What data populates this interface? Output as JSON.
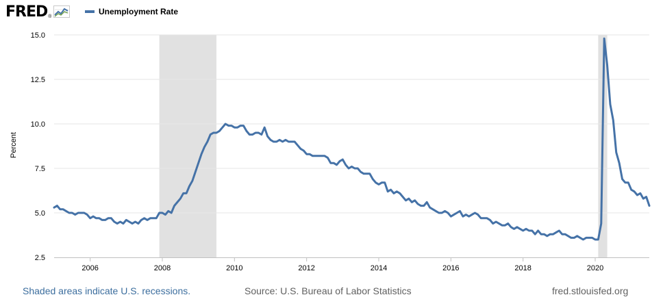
{
  "header": {
    "logo_text": "FRED",
    "logo_mark": "®",
    "logo_icon": "fred-chart-icon"
  },
  "colors": {
    "series": "#4572a7",
    "recession": "#e1e1e1",
    "grid": "#e6e6e6",
    "footer_link": "#3c6e9e",
    "footer_text": "#606060"
  },
  "chart_data": {
    "type": "line",
    "title": "",
    "xlabel": "",
    "ylabel": "Percent",
    "xlim": [
      2005.0,
      2021.5
    ],
    "ylim": [
      2.5,
      15.0
    ],
    "x_ticks": [
      2006,
      2008,
      2010,
      2012,
      2014,
      2016,
      2018,
      2020
    ],
    "x_tick_labels": [
      "2006",
      "2008",
      "2010",
      "2012",
      "2014",
      "2016",
      "2018",
      "2020"
    ],
    "y_ticks": [
      2.5,
      5.0,
      7.5,
      10.0,
      12.5,
      15.0
    ],
    "y_tick_labels": [
      "2.5",
      "5.0",
      "7.5",
      "10.0",
      "12.5",
      "15.0"
    ],
    "grid": "horizontal",
    "legend": "top-left",
    "series": [
      {
        "name": "Unemployment Rate",
        "x_start": "2005-01",
        "frequency": "monthly",
        "values": [
          5.3,
          5.4,
          5.2,
          5.2,
          5.1,
          5.0,
          5.0,
          4.9,
          5.0,
          5.0,
          5.0,
          4.9,
          4.7,
          4.8,
          4.7,
          4.7,
          4.6,
          4.6,
          4.7,
          4.7,
          4.5,
          4.4,
          4.5,
          4.4,
          4.6,
          4.5,
          4.4,
          4.5,
          4.4,
          4.6,
          4.7,
          4.6,
          4.7,
          4.7,
          4.7,
          5.0,
          5.0,
          4.9,
          5.1,
          5.0,
          5.4,
          5.6,
          5.8,
          6.1,
          6.1,
          6.5,
          6.8,
          7.3,
          7.8,
          8.3,
          8.7,
          9.0,
          9.4,
          9.5,
          9.5,
          9.6,
          9.8,
          10.0,
          9.9,
          9.9,
          9.8,
          9.8,
          9.9,
          9.9,
          9.6,
          9.4,
          9.4,
          9.5,
          9.5,
          9.4,
          9.8,
          9.3,
          9.1,
          9.0,
          9.0,
          9.1,
          9.0,
          9.1,
          9.0,
          9.0,
          9.0,
          8.8,
          8.6,
          8.5,
          8.3,
          8.3,
          8.2,
          8.2,
          8.2,
          8.2,
          8.2,
          8.1,
          7.8,
          7.8,
          7.7,
          7.9,
          8.0,
          7.7,
          7.5,
          7.6,
          7.5,
          7.5,
          7.3,
          7.2,
          7.2,
          7.2,
          6.9,
          6.7,
          6.6,
          6.7,
          6.7,
          6.2,
          6.3,
          6.1,
          6.2,
          6.1,
          5.9,
          5.7,
          5.8,
          5.6,
          5.7,
          5.5,
          5.4,
          5.4,
          5.6,
          5.3,
          5.2,
          5.1,
          5.0,
          5.0,
          5.1,
          5.0,
          4.8,
          4.9,
          5.0,
          5.1,
          4.8,
          4.9,
          4.8,
          4.9,
          5.0,
          4.9,
          4.7,
          4.7,
          4.7,
          4.6,
          4.4,
          4.5,
          4.4,
          4.3,
          4.3,
          4.4,
          4.2,
          4.1,
          4.2,
          4.1,
          4.0,
          4.1,
          4.0,
          4.0,
          3.8,
          4.0,
          3.8,
          3.8,
          3.7,
          3.8,
          3.8,
          3.9,
          4.0,
          3.8,
          3.8,
          3.7,
          3.6,
          3.6,
          3.7,
          3.6,
          3.5,
          3.6,
          3.6,
          3.6,
          3.5,
          3.5,
          4.4,
          14.8,
          13.3,
          11.1,
          10.2,
          8.4,
          7.8,
          6.9,
          6.7,
          6.7,
          6.3,
          6.2,
          6.0,
          6.1,
          5.8,
          5.9,
          5.4
        ]
      }
    ],
    "recession_periods": [
      {
        "start": "2007-12",
        "end": "2009-06"
      },
      {
        "start": "2020-02",
        "end": "2020-04"
      }
    ]
  },
  "footer": {
    "recession_note": "Shaded areas indicate U.S. recessions.",
    "source": "Source: U.S. Bureau of Labor Statistics",
    "url": "fred.stlouisfed.org"
  }
}
